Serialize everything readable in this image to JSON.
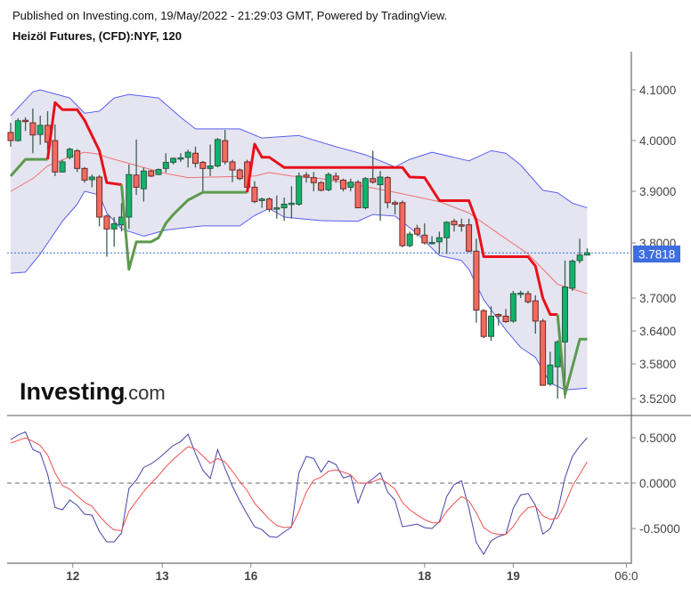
{
  "header": {
    "published": "Published on Investing.com, 19/May/2022 - 21:29:03 GMT, Powered by TradingView.",
    "symbol": "Heizöl Futures, (CFD):NYF, 120"
  },
  "logo": {
    "brand": "Investing",
    "suffix": ".com"
  },
  "colors": {
    "up": "#13b26b",
    "down": "#f26b5f",
    "band_fill": "#e4e5f1",
    "band_line": "#5a5ef0",
    "basis": "#f07070",
    "supertrend_down": "#e8101a",
    "supertrend_up": "#5c9a4c",
    "price_tag": "#3d6ee0",
    "osc_main": "#4444aa",
    "osc_signal": "#f05050"
  },
  "chart_data": [
    {
      "type": "candlestick",
      "panel": "price",
      "y_ticks": [
        "4.1000",
        "4.0000",
        "3.9000",
        "3.8000",
        "3.7000",
        "3.6400",
        "3.5800",
        "3.5200"
      ],
      "last_price": "3.7818",
      "x_ticks": [
        {
          "label": "12",
          "bar": 9.4
        },
        {
          "label": "13",
          "bar": 21.5
        },
        {
          "label": "16",
          "bar": 33.5
        },
        {
          "label": "18",
          "bar": 57
        },
        {
          "label": "19",
          "bar": 69
        },
        {
          "label": "06:0",
          "bar": 84.3
        }
      ],
      "candles_ohlc": [
        [
          4.016,
          4.035,
          3.988,
          4.0
        ],
        [
          4.0,
          4.044,
          3.998,
          4.039
        ],
        [
          4.04,
          4.046,
          4.019,
          4.039
        ],
        [
          4.035,
          4.063,
          3.975,
          4.011
        ],
        [
          4.012,
          4.049,
          3.992,
          4.03
        ],
        [
          4.03,
          4.058,
          3.98,
          3.997
        ],
        [
          4.0,
          4.032,
          3.93,
          3.938
        ],
        [
          3.938,
          3.962,
          3.937,
          3.958
        ],
        [
          3.967,
          3.986,
          3.963,
          3.983
        ],
        [
          3.98,
          3.983,
          3.938,
          3.945
        ],
        [
          3.945,
          3.948,
          3.917,
          3.922
        ],
        [
          3.923,
          3.933,
          3.908,
          3.928
        ],
        [
          3.928,
          3.932,
          3.832,
          3.85
        ],
        [
          3.852,
          3.855,
          3.775,
          3.827
        ],
        [
          3.827,
          3.85,
          3.793,
          3.837
        ],
        [
          3.835,
          3.877,
          3.822,
          3.85
        ],
        [
          3.85,
          3.953,
          3.827,
          3.933
        ],
        [
          3.932,
          4.002,
          3.893,
          3.908
        ],
        [
          3.905,
          3.947,
          3.88,
          3.94
        ],
        [
          3.94,
          3.942,
          3.928,
          3.93
        ],
        [
          3.933,
          3.945,
          3.932,
          3.943
        ],
        [
          3.945,
          3.975,
          3.937,
          3.957
        ],
        [
          3.957,
          3.967,
          3.953,
          3.965
        ],
        [
          3.965,
          3.975,
          3.958,
          3.966
        ],
        [
          3.967,
          3.982,
          3.947,
          3.977
        ],
        [
          3.975,
          3.988,
          3.947,
          3.955
        ],
        [
          3.957,
          3.96,
          3.898,
          3.945
        ],
        [
          3.945,
          3.992,
          3.93,
          3.95
        ],
        [
          3.95,
          4.005,
          3.947,
          4.002
        ],
        [
          4.0,
          4.021,
          3.953,
          3.958
        ],
        [
          3.958,
          3.962,
          3.918,
          3.942
        ],
        [
          3.942,
          3.945,
          3.922,
          3.925
        ],
        [
          3.958,
          3.962,
          3.903,
          3.908
        ],
        [
          3.908,
          3.92,
          3.877,
          3.88
        ],
        [
          3.882,
          3.888,
          3.868,
          3.885
        ],
        [
          3.885,
          3.888,
          3.86,
          3.865
        ],
        [
          3.867,
          3.892,
          3.847,
          3.868
        ],
        [
          3.868,
          3.888,
          3.843,
          3.875
        ],
        [
          3.875,
          3.91,
          3.847,
          3.877
        ],
        [
          3.875,
          3.937,
          3.872,
          3.93
        ],
        [
          3.932,
          3.938,
          3.917,
          3.928
        ],
        [
          3.927,
          3.938,
          3.9,
          3.917
        ],
        [
          3.917,
          3.92,
          3.9,
          3.902
        ],
        [
          3.903,
          3.937,
          3.9,
          3.933
        ],
        [
          3.93,
          3.937,
          3.917,
          3.923
        ],
        [
          3.922,
          3.925,
          3.9,
          3.905
        ],
        [
          3.908,
          3.925,
          3.9,
          3.918
        ],
        [
          3.918,
          3.922,
          3.867,
          3.868
        ],
        [
          3.868,
          3.928,
          3.865,
          3.925
        ],
        [
          3.925,
          3.98,
          3.915,
          3.918
        ],
        [
          3.913,
          3.94,
          3.843,
          3.928
        ],
        [
          3.927,
          3.93,
          3.867,
          3.878
        ],
        [
          3.878,
          3.882,
          3.855,
          3.875
        ],
        [
          3.878,
          3.882,
          3.792,
          3.795
        ],
        [
          3.795,
          3.822,
          3.792,
          3.817
        ],
        [
          3.828,
          3.835,
          3.813,
          3.817
        ],
        [
          3.815,
          3.838,
          3.797,
          3.8
        ],
        [
          3.8,
          3.813,
          3.797,
          3.801
        ],
        [
          3.802,
          3.822,
          3.78,
          3.81
        ],
        [
          3.81,
          3.842,
          3.78,
          3.84
        ],
        [
          3.842,
          3.847,
          3.822,
          3.835
        ],
        [
          3.835,
          3.847,
          3.822,
          3.833
        ],
        [
          3.835,
          3.847,
          3.783,
          3.785
        ],
        [
          3.785,
          3.808,
          3.655,
          3.678
        ],
        [
          3.677,
          3.68,
          3.627,
          3.63
        ],
        [
          3.63,
          3.685,
          3.622,
          3.667
        ],
        [
          3.67,
          3.672,
          3.65,
          3.667
        ],
        [
          3.667,
          3.68,
          3.655,
          3.657
        ],
        [
          3.658,
          3.713,
          3.655,
          3.708
        ],
        [
          3.708,
          3.713,
          3.7,
          3.709
        ],
        [
          3.708,
          3.713,
          3.69,
          3.693
        ],
        [
          3.695,
          3.705,
          3.635,
          3.658
        ],
        [
          3.658,
          3.662,
          3.542,
          3.543
        ],
        [
          3.545,
          3.602,
          3.542,
          3.578
        ],
        [
          3.575,
          3.623,
          3.52,
          3.62
        ],
        [
          3.62,
          3.768,
          3.52,
          3.72
        ],
        [
          3.718,
          3.77,
          3.713,
          3.767
        ],
        [
          3.768,
          3.808,
          3.763,
          3.778
        ],
        [
          3.778,
          3.79,
          3.778,
          3.782
        ]
      ],
      "bollinger_upper": [
        [
          1,
          4.049
        ],
        [
          4,
          4.096
        ],
        [
          5,
          4.1
        ],
        [
          9,
          4.084
        ],
        [
          11,
          4.054
        ],
        [
          13,
          4.058
        ],
        [
          15,
          4.084
        ],
        [
          17,
          4.091
        ],
        [
          21,
          4.084
        ],
        [
          24,
          4.046
        ],
        [
          26,
          4.023
        ],
        [
          32,
          4.023
        ],
        [
          35,
          4.005
        ],
        [
          40,
          4.01
        ],
        [
          45,
          3.988
        ],
        [
          49,
          3.972
        ],
        [
          53,
          3.948
        ],
        [
          55,
          3.963
        ],
        [
          58,
          3.977
        ],
        [
          63,
          3.96
        ],
        [
          66,
          3.98
        ],
        [
          68,
          3.975
        ],
        [
          70,
          3.952
        ],
        [
          73,
          3.902
        ],
        [
          75,
          3.897
        ],
        [
          77,
          3.877
        ],
        [
          79,
          3.868
        ]
      ],
      "bollinger_basis": [
        [
          1,
          3.9
        ],
        [
          4,
          3.925
        ],
        [
          6,
          3.95
        ],
        [
          9,
          3.968
        ],
        [
          11,
          3.977
        ],
        [
          13,
          3.973
        ],
        [
          14,
          3.967
        ],
        [
          17,
          3.955
        ],
        [
          19,
          3.947
        ],
        [
          22,
          3.935
        ],
        [
          25,
          3.927
        ],
        [
          34,
          3.93
        ],
        [
          36,
          3.937
        ],
        [
          39,
          3.93
        ],
        [
          43,
          3.925
        ],
        [
          48,
          3.912
        ],
        [
          53,
          3.898
        ],
        [
          59,
          3.88
        ],
        [
          63,
          3.858
        ],
        [
          67,
          3.818
        ],
        [
          71,
          3.78
        ],
        [
          75,
          3.725
        ],
        [
          79,
          3.708
        ]
      ],
      "bollinger_lower": [
        [
          1,
          3.745
        ],
        [
          3,
          3.747
        ],
        [
          5,
          3.78
        ],
        [
          8,
          3.842
        ],
        [
          10,
          3.875
        ],
        [
          11,
          3.9
        ],
        [
          13,
          3.893
        ],
        [
          14,
          3.858
        ],
        [
          16,
          3.827
        ],
        [
          19,
          3.813
        ],
        [
          22,
          3.825
        ],
        [
          25,
          3.83
        ],
        [
          27,
          3.833
        ],
        [
          32,
          3.833
        ],
        [
          34,
          3.853
        ],
        [
          36,
          3.867
        ],
        [
          38,
          3.85
        ],
        [
          43,
          3.843
        ],
        [
          48,
          3.842
        ],
        [
          50,
          3.855
        ],
        [
          53,
          3.852
        ],
        [
          56,
          3.818
        ],
        [
          59,
          3.777
        ],
        [
          62,
          3.768
        ],
        [
          63,
          3.752
        ],
        [
          65,
          3.697
        ],
        [
          68,
          3.642
        ],
        [
          70,
          3.61
        ],
        [
          72,
          3.592
        ],
        [
          74,
          3.547
        ],
        [
          76,
          3.535
        ],
        [
          79,
          3.538
        ]
      ],
      "supertrend": [
        {
          "trend": "up",
          "points": [
            [
              1,
              3.93
            ],
            [
              3,
              3.963
            ],
            [
              6,
              3.963
            ]
          ]
        },
        {
          "trend": "down",
          "points": [
            [
              6,
              3.963
            ],
            [
              7,
              4.075
            ],
            [
              8,
              4.061
            ],
            [
              10,
              4.061
            ],
            [
              11,
              4.04
            ],
            [
              13,
              3.98
            ],
            [
              14,
              3.917
            ],
            [
              16,
              3.913
            ]
          ]
        },
        {
          "trend": "up",
          "points": [
            [
              16,
              3.913
            ],
            [
              17,
              3.752
            ],
            [
              18,
              3.802
            ],
            [
              20,
              3.802
            ],
            [
              21,
              3.81
            ],
            [
              22,
              3.838
            ],
            [
              23,
              3.855
            ],
            [
              25,
              3.883
            ],
            [
              27,
              3.898
            ],
            [
              33,
              3.898
            ]
          ]
        },
        {
          "trend": "down",
          "points": [
            [
              33,
              3.898
            ],
            [
              34,
              3.993
            ],
            [
              35,
              3.967
            ],
            [
              36,
              3.967
            ],
            [
              38,
              3.947
            ],
            [
              54,
              3.947
            ],
            [
              55,
              3.928
            ],
            [
              57,
              3.927
            ],
            [
              59,
              3.882
            ],
            [
              63,
              3.882
            ],
            [
              64,
              3.843
            ],
            [
              65,
              3.775
            ],
            [
              71,
              3.775
            ],
            [
              72,
              3.758
            ],
            [
              73,
              3.7
            ],
            [
              74,
              3.67
            ],
            [
              75,
              3.67
            ]
          ]
        },
        {
          "trend": "up",
          "points": [
            [
              75,
              3.67
            ],
            [
              76,
              3.527
            ],
            [
              78,
              3.625
            ],
            [
              79,
              3.625
            ]
          ]
        }
      ]
    },
    {
      "type": "line",
      "panel": "oscillator",
      "y_ticks": [
        "0.5000",
        "0.0000",
        "-0.5000"
      ],
      "zero_line": "dashed",
      "series": [
        {
          "values": [
            0.48,
            0.53,
            0.565,
            0.37,
            0.333,
            0.098,
            -0.268,
            -0.294,
            -0.186,
            -0.245,
            -0.343,
            -0.353,
            -0.533,
            -0.647,
            -0.647,
            -0.549,
            -0.059,
            0.033,
            0.173,
            0.212,
            0.271,
            0.343,
            0.415,
            0.458,
            0.539,
            0.327,
            0.141,
            0.052,
            0.369,
            0.163,
            -0.033,
            -0.196,
            -0.343,
            -0.48,
            -0.513,
            -0.588,
            -0.598,
            -0.539,
            -0.484,
            0.114,
            0.294,
            0.271,
            0.121,
            0.245,
            0.206,
            0.056,
            0.082,
            -0.219,
            -0.01,
            0.049,
            0.114,
            -0.098,
            -0.19,
            -0.48,
            -0.467,
            -0.451,
            -0.49,
            -0.5,
            -0.425,
            -0.147,
            -0.016,
            0.026,
            -0.278,
            -0.654,
            -0.784,
            -0.637,
            -0.588,
            -0.562,
            -0.278,
            -0.131,
            -0.114,
            -0.245,
            -0.562,
            -0.5,
            -0.31,
            0.059,
            0.294,
            0.408,
            0.5
          ]
        },
        {
          "values": [
            0.441,
            0.47,
            0.5,
            0.46,
            0.415,
            0.31,
            0.114,
            -0.026,
            -0.065,
            -0.14,
            -0.212,
            -0.255,
            -0.36,
            -0.451,
            -0.516,
            -0.523,
            -0.31,
            -0.2,
            -0.092,
            0,
            0.082,
            0.18,
            0.261,
            0.333,
            0.402,
            0.376,
            0.3,
            0.219,
            0.271,
            0.235,
            0.131,
            0.016,
            -0.082,
            -0.222,
            -0.31,
            -0.399,
            -0.467,
            -0.49,
            -0.48,
            -0.31,
            -0.098,
            0.033,
            0.065,
            0.131,
            0.147,
            0.121,
            0.092,
            0,
            0,
            0.016,
            0.049,
            0,
            -0.065,
            -0.212,
            -0.294,
            -0.35,
            -0.402,
            -0.435,
            -0.435,
            -0.31,
            -0.222,
            -0.147,
            -0.196,
            -0.327,
            -0.49,
            -0.546,
            -0.565,
            -0.565,
            -0.48,
            -0.353,
            -0.271,
            -0.255,
            -0.36,
            -0.399,
            -0.386,
            -0.229,
            -0.033,
            0.098,
            0.235
          ]
        }
      ]
    }
  ]
}
